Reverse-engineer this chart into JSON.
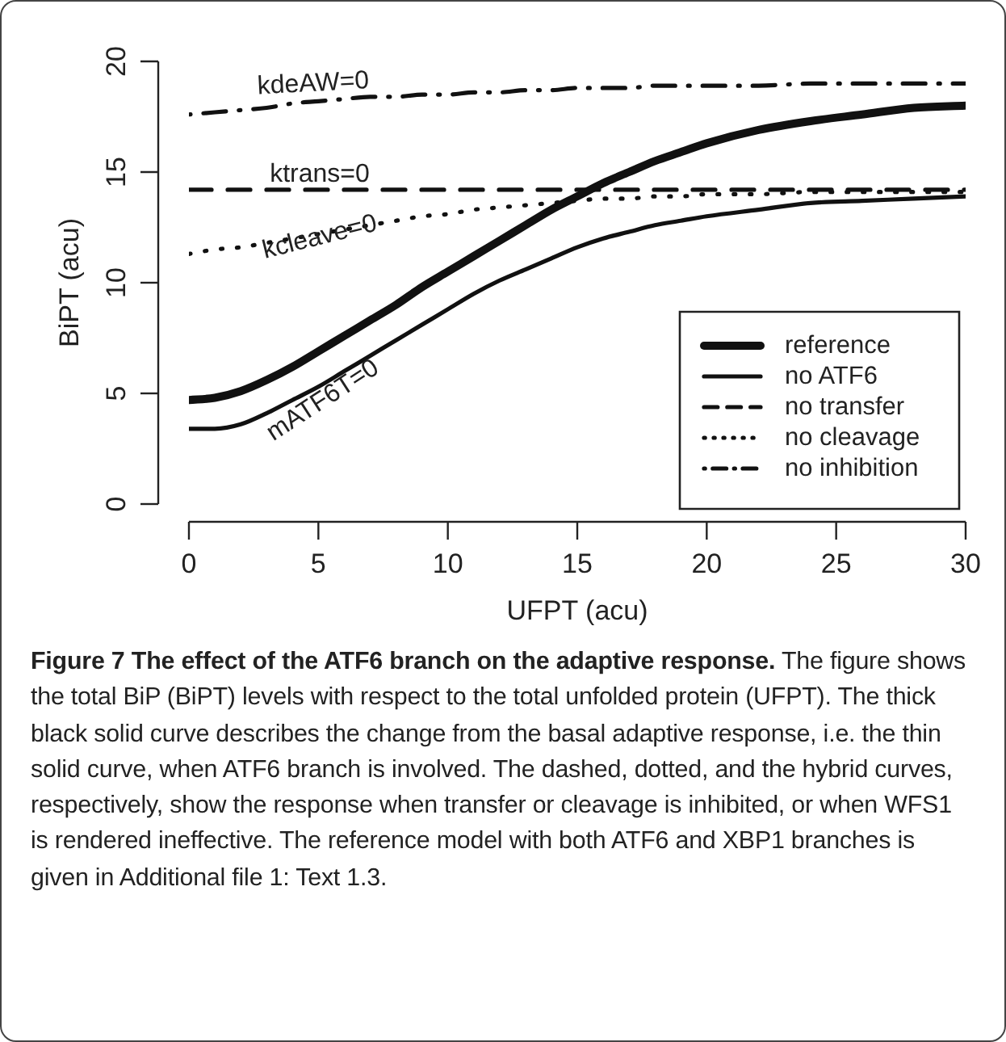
{
  "chart_data": {
    "type": "line",
    "title": "Figure 7 The effect of the ATF6 branch on the adaptive response.",
    "xlabel": "UFPT (acu)",
    "ylabel": "BiPT (acu)",
    "x": [
      0,
      1,
      2,
      3,
      4,
      5,
      6,
      7,
      8,
      9,
      10,
      11,
      12,
      13,
      14,
      15,
      16,
      17,
      18,
      19,
      20,
      22,
      24,
      26,
      28,
      30
    ],
    "series": [
      {
        "name": "reference",
        "color": "#111111",
        "line_style": "solid",
        "values": [
          4.7,
          4.8,
          5.1,
          5.6,
          6.2,
          6.9,
          7.6,
          8.3,
          9.0,
          9.8,
          10.5,
          11.2,
          11.9,
          12.6,
          13.3,
          13.9,
          14.5,
          15.0,
          15.5,
          15.9,
          16.3,
          16.9,
          17.3,
          17.6,
          17.9,
          18.0
        ]
      },
      {
        "name": "no ATF6",
        "color": "#111111",
        "line_style": "solid",
        "values": [
          3.4,
          3.4,
          3.6,
          4.1,
          4.7,
          5.3,
          6.0,
          6.7,
          7.4,
          8.1,
          8.8,
          9.5,
          10.1,
          10.6,
          11.1,
          11.6,
          12.0,
          12.3,
          12.6,
          12.8,
          13.0,
          13.3,
          13.6,
          13.7,
          13.8,
          13.9
        ]
      },
      {
        "name": "no transfer",
        "color": "#111111",
        "line_style": "dashed",
        "values": [
          14.2,
          14.2,
          14.2,
          14.2,
          14.2,
          14.2,
          14.2,
          14.2,
          14.2,
          14.2,
          14.2,
          14.2,
          14.2,
          14.2,
          14.2,
          14.2,
          14.2,
          14.2,
          14.2,
          14.2,
          14.2,
          14.2,
          14.2,
          14.2,
          14.2,
          14.2
        ]
      },
      {
        "name": "no cleavage",
        "color": "#111111",
        "line_style": "dotted",
        "values": [
          11.3,
          11.5,
          11.6,
          11.8,
          12.0,
          12.2,
          12.4,
          12.6,
          12.8,
          13.0,
          13.1,
          13.3,
          13.4,
          13.5,
          13.6,
          13.7,
          13.8,
          13.8,
          13.9,
          13.9,
          14.0,
          14.0,
          14.1,
          14.1,
          14.1,
          14.1
        ]
      },
      {
        "name": "no inhibition",
        "color": "#111111",
        "line_style": "dashdot",
        "values": [
          17.6,
          17.7,
          17.8,
          17.9,
          18.1,
          18.2,
          18.3,
          18.4,
          18.4,
          18.5,
          18.5,
          18.6,
          18.6,
          18.7,
          18.7,
          18.8,
          18.8,
          18.8,
          18.9,
          18.9,
          18.9,
          18.9,
          19.0,
          19.0,
          19.0,
          19.0
        ]
      }
    ],
    "xlim": [
      0,
      30
    ],
    "xticks": [
      0,
      5,
      10,
      15,
      20,
      25,
      30
    ],
    "ylim": [
      0,
      20
    ],
    "yticks": [
      0,
      5,
      10,
      15,
      20
    ],
    "legend": "bottom right",
    "grid": false,
    "marker": "none",
    "annotations": [
      "kdeAW=0",
      "ktrans=0",
      "kcleave=0",
      "mATF6T=0",
      "The figure shows the total BiP (BiPT) levels with respect to the total unfolded protein (UFPT). The thick black solid curve describes the change from the basal adaptive response, i.e. the thin solid curve, when ATF6 branch is involved. The dashed, dotted, and the hybrid curves, respectively, show the response when transfer or cleavage is inhibited, or when WFS1 is rendered ineffective. The reference model with both ATF6 and XBP1 branches is given in Additional file 1: Text 1.3."
    ]
  }
}
